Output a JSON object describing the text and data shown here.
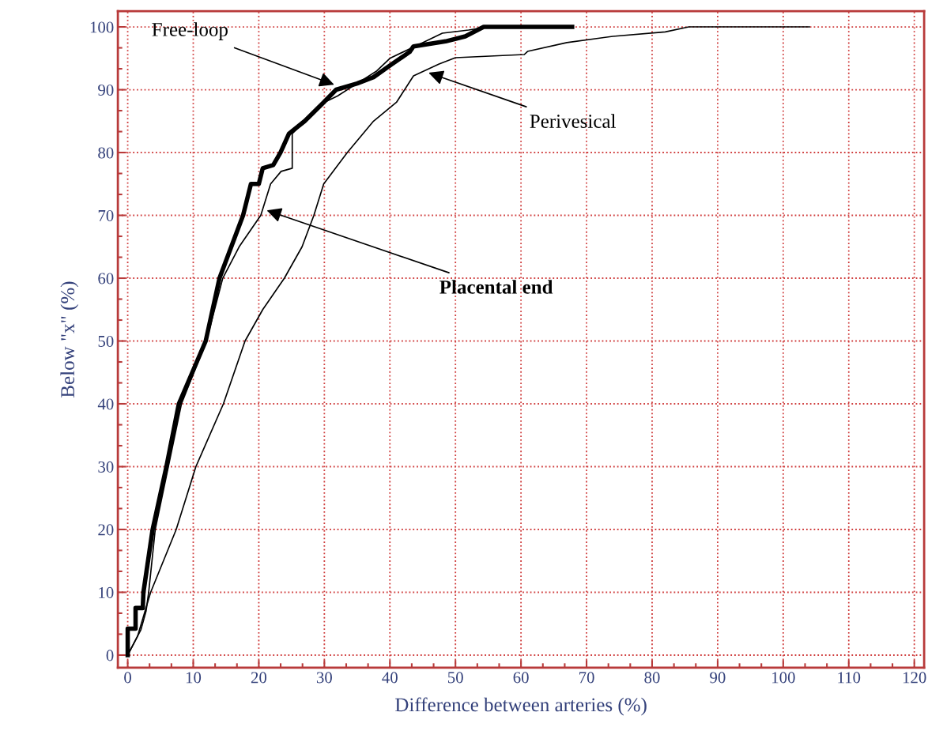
{
  "chart_data": {
    "type": "line",
    "xlabel": "Difference between arteries (%)",
    "ylabel": "Below \"x\" (%)",
    "xlim": [
      -1.5,
      121.5
    ],
    "ylim": [
      -2,
      102.5
    ],
    "xticks": [
      0,
      10,
      20,
      30,
      40,
      50,
      60,
      70,
      80,
      90,
      100,
      110,
      120
    ],
    "yticks": [
      0,
      10,
      20,
      30,
      40,
      50,
      60,
      70,
      80,
      90,
      100
    ],
    "grid": true,
    "marker": "none",
    "line_style": "solid",
    "series": [
      {
        "color": "#000000",
        "x": [
          0,
          0,
          1.2,
          1.2,
          2.3,
          2.4,
          3.8,
          5.9,
          7.8,
          11.9,
          14.0,
          17.6,
          18.8,
          20.0,
          20.6,
          22.2,
          23.3,
          24.6,
          27.0,
          29.9,
          31.8,
          35.0,
          37.5,
          40.2,
          43.0,
          43.6,
          48.5,
          51.5,
          54.3,
          67.8
        ],
        "values": [
          0,
          4.2,
          4.2,
          7.5,
          7.5,
          10,
          20,
          30,
          40,
          50,
          60,
          70,
          75,
          75,
          77.5,
          78,
          80,
          83,
          85,
          88,
          90,
          91,
          92,
          94,
          96,
          96.9,
          97.7,
          98.5,
          100,
          100
        ]
      },
      {
        "color": "#000000",
        "x": [
          0,
          1,
          2,
          2.8,
          3.2,
          4.2,
          6.2,
          8.2,
          12,
          14.5,
          17,
          20.3,
          21.8,
          23.4,
          25.1,
          25.1,
          27,
          30,
          32,
          35,
          38,
          40,
          44,
          48,
          52,
          55
        ],
        "values": [
          0,
          2,
          4,
          7,
          10,
          20,
          30,
          40,
          50,
          60,
          65,
          70,
          75,
          77,
          77.5,
          83,
          85,
          88,
          89,
          91,
          93,
          95,
          97,
          99,
          99.5,
          100
        ]
      },
      {
        "color": "#000000",
        "x": [
          0,
          1.5,
          3.5,
          7.4,
          10.4,
          14.6,
          17.9,
          20.6,
          23.9,
          26.6,
          28.4,
          29.9,
          33.5,
          37.5,
          41.0,
          43.6,
          47.5,
          50.0,
          60.5,
          61.0,
          67.0,
          74.0,
          82.0,
          85.6,
          104
        ],
        "values": [
          0,
          3,
          10,
          20,
          30,
          40,
          50,
          55,
          60,
          65,
          70,
          75,
          80,
          85,
          88,
          92.2,
          94.1,
          95.1,
          95.6,
          96.1,
          97.5,
          98.5,
          99.2,
          100,
          100
        ]
      }
    ],
    "annotations": [
      {
        "text": "Free-loop",
        "x": 31.5,
        "y": 90.8
      },
      {
        "text": "Perivesical",
        "x": 45.9,
        "y": 92.7
      },
      {
        "text": "Placental end",
        "x": 21.2,
        "y": 70.8
      }
    ]
  }
}
